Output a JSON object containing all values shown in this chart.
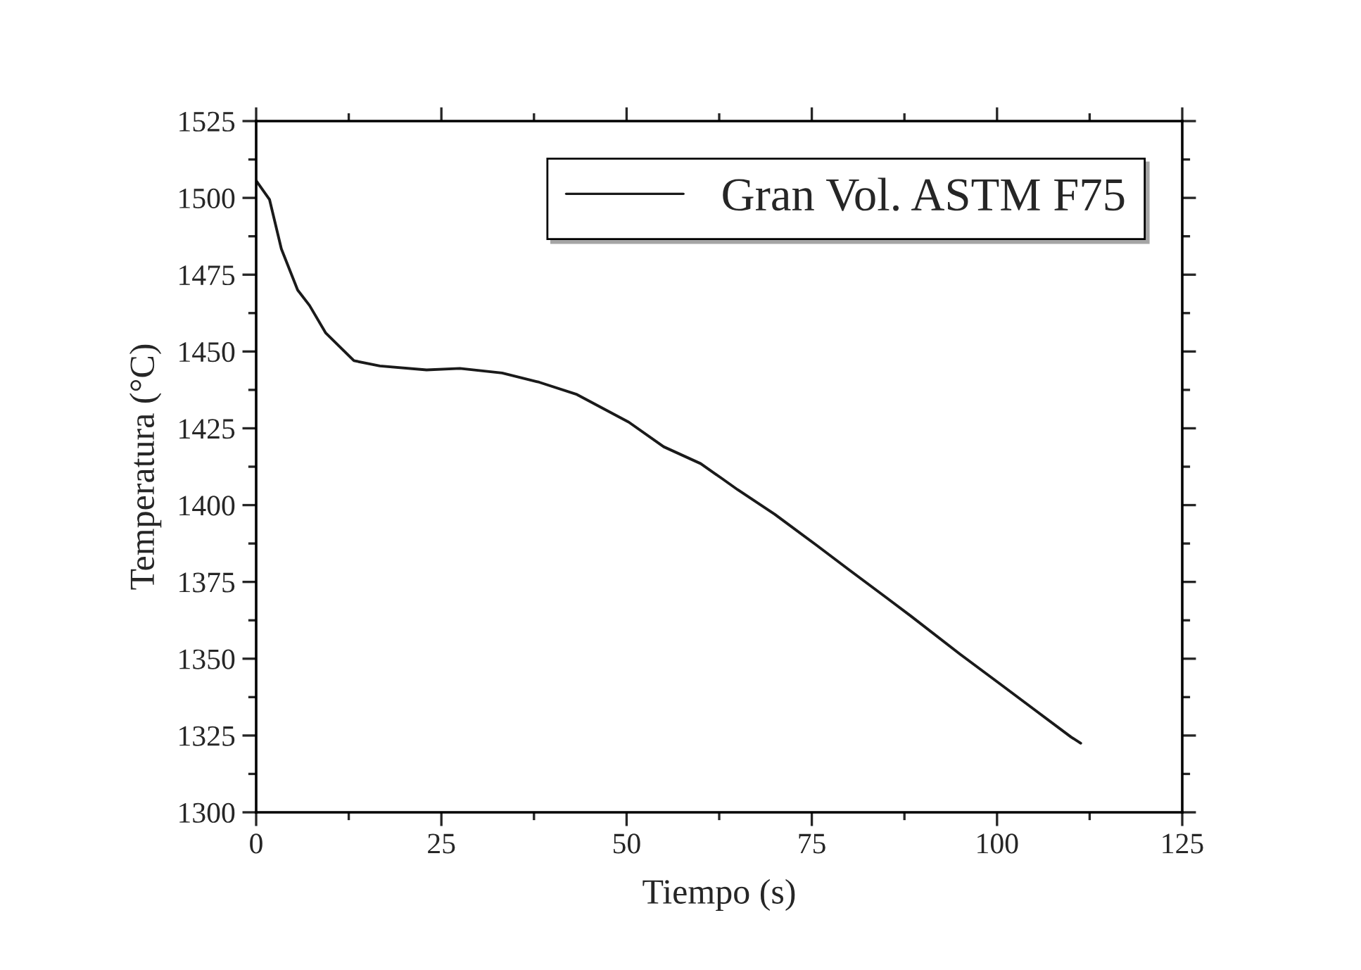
{
  "chart_data": {
    "type": "line",
    "xlabel": "Tiempo (s)",
    "ylabel": "Temperatura (°C)",
    "x": [
      0,
      1.8,
      3.4,
      5.6,
      7.2,
      9.4,
      13.2,
      16.7,
      23,
      27.5,
      33.2,
      38.2,
      43.3,
      50.3,
      55,
      60,
      62.9,
      65,
      70,
      75.6,
      80,
      85,
      88.3,
      95,
      100.3,
      105,
      110,
      111.3
    ],
    "series": [
      {
        "name": "Gran Vol. ASTM F75",
        "color": "#1a1a1a",
        "values": [
          1505.6,
          1499.5,
          1483.4,
          1470,
          1465,
          1456,
          1447,
          1445.3,
          1444,
          1444.5,
          1443,
          1440,
          1436,
          1427,
          1419,
          1413.5,
          1408.6,
          1405,
          1397,
          1387,
          1379,
          1370,
          1364,
          1351.5,
          1342,
          1333.5,
          1324.5,
          1322.5
        ]
      }
    ],
    "xlim": [
      0,
      125
    ],
    "xticks": [
      0,
      25,
      50,
      75,
      100,
      125
    ],
    "ylim": [
      1300,
      1525
    ],
    "yticks": [
      1300,
      1325,
      1350,
      1375,
      1400,
      1425,
      1450,
      1475,
      1500,
      1525
    ],
    "legend": "top right",
    "grid": false,
    "marker": "none",
    "line_style": "solid"
  }
}
